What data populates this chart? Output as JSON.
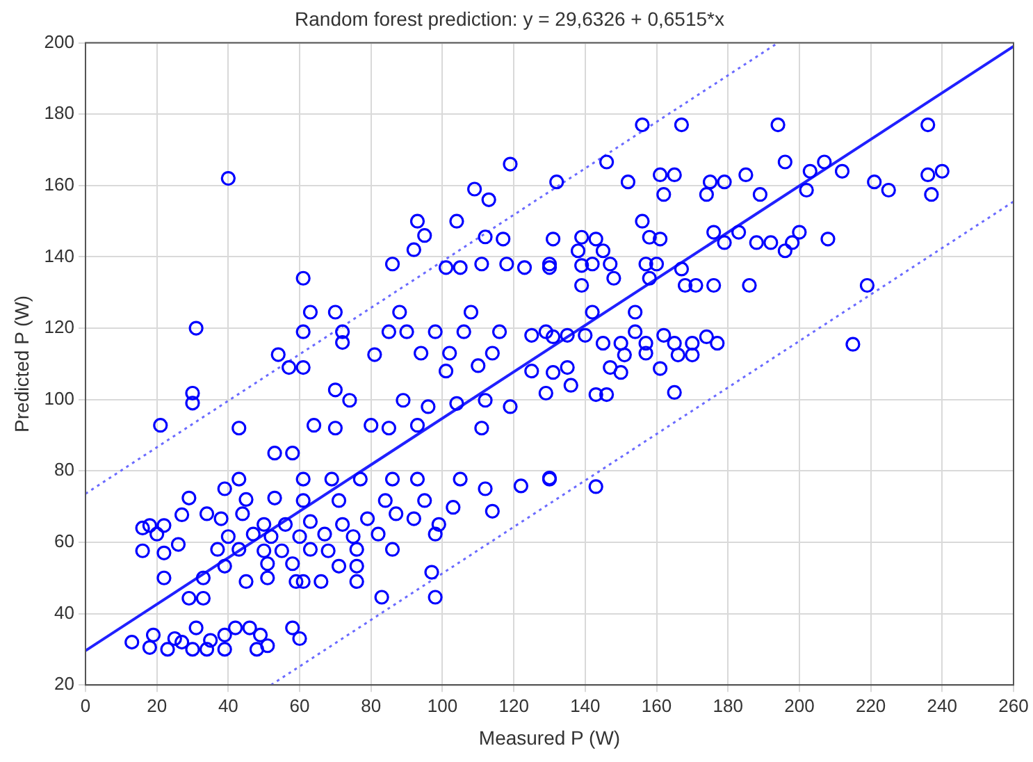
{
  "chart_data": {
    "type": "scatter",
    "title": "Random forest prediction: y = 29,6326 + 0,6515*x",
    "xlabel": "Measured P (W)",
    "ylabel": "Predicted P (W)",
    "xlim": [
      0,
      260
    ],
    "ylim": [
      20,
      200
    ],
    "xticks": [
      0,
      20,
      40,
      60,
      80,
      100,
      120,
      140,
      160,
      180,
      200,
      220,
      240,
      260
    ],
    "yticks": [
      20,
      40,
      60,
      80,
      100,
      120,
      140,
      160,
      180,
      200
    ],
    "grid": true,
    "marker": "circle",
    "series": [
      {
        "color": "#0000ff",
        "x": [
          40,
          119,
          132,
          109,
          113,
          93,
          104,
          95,
          112,
          117,
          131,
          92,
          86,
          101,
          105,
          111,
          118,
          123,
          130,
          61,
          63,
          70,
          88,
          108,
          31,
          61,
          72,
          85,
          90,
          98,
          106,
          116,
          125,
          129,
          54,
          57,
          61,
          72,
          81,
          94,
          102,
          114,
          101,
          110,
          125,
          156,
          167,
          194,
          236,
          146,
          152,
          161,
          165,
          162,
          175,
          179,
          174,
          185,
          189,
          196,
          203,
          207,
          212,
          202,
          221,
          225,
          236,
          240,
          237,
          139,
          143,
          138,
          145,
          156,
          158,
          161,
          176,
          179,
          183,
          188,
          192,
          196,
          198,
          200,
          208,
          130,
          139,
          142,
          147,
          148,
          157,
          160,
          158,
          167,
          139,
          168,
          171,
          176,
          186,
          219,
          142,
          154,
          154,
          131,
          135,
          140,
          145,
          150,
          157,
          162,
          165,
          170,
          174,
          177,
          151,
          157,
          166,
          170,
          215,
          147,
          150,
          161,
          135,
          131,
          130,
          143,
          143,
          146,
          165,
          136,
          21,
          30,
          30,
          43,
          53,
          58,
          64,
          70,
          80,
          85,
          93,
          111,
          70,
          74,
          89,
          96,
          104,
          112,
          119,
          129,
          39,
          43,
          61,
          69,
          77,
          86,
          93,
          105,
          112,
          122,
          130,
          29,
          45,
          53,
          61,
          71,
          84,
          95,
          103,
          114,
          16,
          18,
          22,
          27,
          34,
          38,
          44,
          50,
          56,
          63,
          72,
          79,
          87,
          92,
          99,
          20,
          40,
          47,
          52,
          60,
          67,
          75,
          82,
          98,
          16,
          22,
          26,
          37,
          43,
          50,
          55,
          63,
          68,
          76,
          86,
          39,
          51,
          58,
          71,
          76,
          97,
          22,
          33,
          45,
          51,
          59,
          61,
          66,
          76,
          29,
          33,
          83,
          98,
          13,
          19,
          18,
          23,
          25,
          30,
          31,
          34,
          39,
          39,
          42,
          46,
          48,
          51,
          49,
          27,
          35,
          58,
          60
        ],
        "values": [
          162,
          166,
          161,
          159,
          156,
          150,
          150,
          146,
          145.6,
          145,
          145,
          142,
          138,
          137,
          137,
          138,
          138,
          137,
          138,
          134,
          124.5,
          124.5,
          124.5,
          124.5,
          120,
          119,
          119,
          119,
          119,
          119,
          119,
          119,
          118,
          119,
          112.6,
          109,
          109,
          116,
          112.6,
          113,
          113,
          113,
          108,
          109.5,
          108,
          177,
          177,
          177,
          177,
          166.6,
          161,
          163,
          163,
          157.5,
          161,
          161,
          157.5,
          163,
          157.5,
          166.6,
          164,
          166.6,
          164,
          158.7,
          161,
          158.7,
          163,
          164,
          157.5,
          145.5,
          145,
          141.7,
          141.7,
          150,
          145.5,
          145,
          146.9,
          144,
          146.9,
          144,
          144,
          141.7,
          144,
          146.9,
          145,
          137,
          137.6,
          138,
          138,
          134,
          138,
          138,
          134,
          136.6,
          132,
          132,
          132,
          132,
          132,
          132,
          124.5,
          124.5,
          119,
          117.6,
          118,
          118,
          115.8,
          115.8,
          115.8,
          118,
          115.8,
          115.8,
          117.6,
          115.8,
          112.5,
          113,
          112.5,
          112.5,
          115.5,
          109,
          107.6,
          108.7,
          109,
          107.6,
          78,
          75.6,
          101.4,
          101.4,
          102,
          104,
          92.8,
          101.8,
          99,
          92,
          85,
          85,
          92.8,
          92,
          92.8,
          92,
          92.8,
          92,
          102.7,
          99.8,
          99.8,
          98,
          98.9,
          99.8,
          98,
          101.8,
          75,
          77.7,
          77.7,
          77.7,
          77.7,
          77.7,
          77.7,
          77.7,
          75,
          75.8,
          77.7,
          72.4,
          72,
          72.4,
          71.7,
          71.7,
          71.7,
          71.7,
          69.8,
          68.7,
          64,
          64.7,
          64.7,
          67.7,
          68,
          66.6,
          68,
          65,
          65,
          65.8,
          65,
          66.6,
          68,
          66.6,
          65,
          62.3,
          61.6,
          62.3,
          61.6,
          61.6,
          62.3,
          61.6,
          62.3,
          62.3,
          57.6,
          57,
          59.4,
          58,
          58,
          57.6,
          57.6,
          58,
          57.6,
          58,
          58,
          53.3,
          54,
          54,
          53.3,
          53.3,
          51.6,
          50,
          50,
          49,
          50,
          49,
          49,
          49,
          49,
          44.3,
          44.3,
          44.6,
          44.6,
          32,
          34,
          30.5,
          30,
          33,
          30,
          36,
          30,
          34,
          30,
          36,
          36,
          30,
          31,
          34,
          32,
          32.5,
          36,
          33
        ]
      },
      {
        "type": "line",
        "color": "#2020ff",
        "marker": "none",
        "line_style": "solid",
        "x": [
          0,
          260
        ],
        "values": [
          29.6,
          199
        ]
      },
      {
        "type": "line",
        "color": "#6a6aff",
        "marker": "none",
        "line_style": "dotted",
        "x": [
          0,
          194
        ],
        "values": [
          73.6,
          200
        ]
      },
      {
        "type": "line",
        "color": "#6a6aff",
        "marker": "none",
        "line_style": "dotted",
        "x": [
          52,
          260
        ],
        "values": [
          20,
          155.5
        ]
      }
    ]
  }
}
